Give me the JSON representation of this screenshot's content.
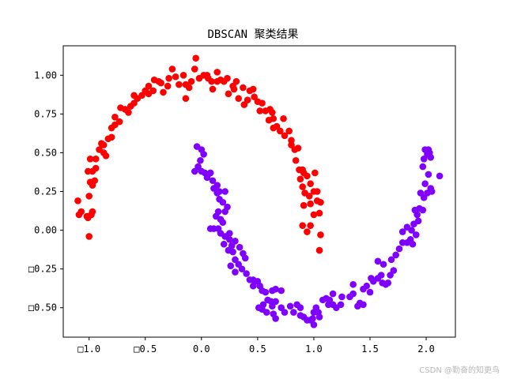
{
  "chart_data": {
    "type": "scatter",
    "title": "DBSCAN 聚类结果",
    "xlabel": "",
    "ylabel": "",
    "xlim": [
      -1.23,
      2.26
    ],
    "ylim": [
      -0.69,
      1.19
    ],
    "grid": false,
    "legend": "none",
    "x_ticks": [
      -1.0,
      -0.5,
      0.0,
      0.5,
      1.0,
      1.5,
      2.0
    ],
    "x_tick_labels": [
      "□1.0",
      "□0.5",
      "0.0",
      "0.5",
      "1.0",
      "1.5",
      "2.0"
    ],
    "y_ticks": [
      1.0,
      0.75,
      0.5,
      0.25,
      0.0,
      -0.25,
      -0.5
    ],
    "y_tick_labels": [
      "1.00",
      "0.75",
      "0.50",
      "0.25",
      "0.00",
      "□0.25",
      "□0.50"
    ],
    "series": [
      {
        "color": "#ff0000",
        "points": [
          [
            -1.1,
            0.19
          ],
          [
            -1.09,
            0.1
          ],
          [
            -1.07,
            0.12
          ],
          [
            -1.02,
            0.09
          ],
          [
            -1.01,
            0.08
          ],
          [
            -0.98,
            0.1
          ],
          [
            -0.97,
            0.12
          ],
          [
            -1.0,
            0.22
          ],
          [
            -0.99,
            0.31
          ],
          [
            -0.97,
            0.29
          ],
          [
            -1.01,
            0.38
          ],
          [
            -0.97,
            0.38
          ],
          [
            -0.99,
            0.46
          ],
          [
            -0.95,
            0.32
          ],
          [
            -0.94,
            0.4
          ],
          [
            -1.0,
            -0.04
          ],
          [
            -0.94,
            0.46
          ],
          [
            -0.91,
            0.52
          ],
          [
            -0.89,
            0.56
          ],
          [
            -0.87,
            0.55
          ],
          [
            -0.87,
            0.5
          ],
          [
            -0.85,
            0.48
          ],
          [
            -0.83,
            0.59
          ],
          [
            -0.8,
            0.6
          ],
          [
            -0.8,
            0.66
          ],
          [
            -0.77,
            0.68
          ],
          [
            -0.73,
            0.7
          ],
          [
            -0.77,
            0.73
          ],
          [
            -0.72,
            0.79
          ],
          [
            -0.68,
            0.78
          ],
          [
            -0.65,
            0.76
          ],
          [
            -0.63,
            0.8
          ],
          [
            -0.6,
            0.82
          ],
          [
            -0.6,
            0.87
          ],
          [
            -0.57,
            0.85
          ],
          [
            -0.53,
            0.87
          ],
          [
            -0.5,
            0.9
          ],
          [
            -0.47,
            0.93
          ],
          [
            -0.47,
            0.88
          ],
          [
            -0.43,
            0.9
          ],
          [
            -0.42,
            0.97
          ],
          [
            -0.38,
            0.96
          ],
          [
            -0.36,
            0.95
          ],
          [
            -0.34,
            0.89
          ],
          [
            -0.3,
            0.93
          ],
          [
            -0.29,
            0.98
          ],
          [
            -0.26,
            1.04
          ],
          [
            -0.23,
            0.99
          ],
          [
            -0.2,
            0.94
          ],
          [
            -0.16,
            1.0
          ],
          [
            -0.14,
            0.94
          ],
          [
            -0.11,
            0.92
          ],
          [
            -0.14,
            0.85
          ],
          [
            -0.09,
            0.96
          ],
          [
            -0.06,
            1.04
          ],
          [
            -0.05,
            1.11
          ],
          [
            -0.02,
            0.98
          ],
          [
            0.02,
            1.0
          ],
          [
            0.05,
            1.0
          ],
          [
            0.06,
            0.98
          ],
          [
            0.09,
            0.96
          ],
          [
            0.1,
            0.91
          ],
          [
            0.14,
            0.96
          ],
          [
            0.14,
            1.02
          ],
          [
            0.17,
            0.97
          ],
          [
            0.2,
            0.96
          ],
          [
            0.23,
            0.98
          ],
          [
            0.24,
            0.88
          ],
          [
            0.28,
            0.93
          ],
          [
            0.29,
            0.91
          ],
          [
            0.31,
            0.96
          ],
          [
            0.33,
            0.85
          ],
          [
            0.37,
            0.92
          ],
          [
            0.38,
            0.81
          ],
          [
            0.41,
            0.84
          ],
          [
            0.43,
            0.9
          ],
          [
            0.46,
            0.91
          ],
          [
            0.47,
            0.86
          ],
          [
            0.5,
            0.83
          ],
          [
            0.52,
            0.77
          ],
          [
            0.54,
            0.82
          ],
          [
            0.57,
            0.77
          ],
          [
            0.6,
            0.71
          ],
          [
            0.61,
            0.78
          ],
          [
            0.63,
            0.76
          ],
          [
            0.64,
            0.72
          ],
          [
            0.64,
            0.66
          ],
          [
            0.67,
            0.67
          ],
          [
            0.7,
            0.64
          ],
          [
            0.73,
            0.72
          ],
          [
            0.74,
            0.61
          ],
          [
            0.78,
            0.64
          ],
          [
            0.8,
            0.58
          ],
          [
            0.8,
            0.55
          ],
          [
            0.83,
            0.52
          ],
          [
            0.84,
            0.45
          ],
          [
            0.86,
            0.53
          ],
          [
            0.87,
            0.39
          ],
          [
            0.88,
            0.33
          ],
          [
            0.9,
            0.39
          ],
          [
            0.9,
            0.28
          ],
          [
            0.91,
            0.37
          ],
          [
            0.92,
            0.24
          ],
          [
            0.91,
            0.16
          ],
          [
            0.94,
            0.35
          ],
          [
            0.96,
            0.22
          ],
          [
            0.97,
            0.17
          ],
          [
            0.97,
            0.3
          ],
          [
            1.0,
            0.25
          ],
          [
            1.01,
            0.37
          ],
          [
            1.03,
            0.25
          ],
          [
            1.03,
            0.19
          ],
          [
            0.9,
            0.03
          ],
          [
            0.94,
            -0.01
          ],
          [
            0.97,
            0.03
          ],
          [
            1.0,
            0.1
          ],
          [
            1.06,
            0.18
          ],
          [
            1.05,
            0.11
          ],
          [
            1.06,
            -0.03
          ],
          [
            1.05,
            -0.13
          ]
        ]
      },
      {
        "color": "#8000ff",
        "points": [
          [
            -0.04,
            0.54
          ],
          [
            0.0,
            0.52
          ],
          [
            0.02,
            0.49
          ],
          [
            -0.01,
            0.45
          ],
          [
            -0.03,
            0.41
          ],
          [
            -0.06,
            0.38
          ],
          [
            0.0,
            0.38
          ],
          [
            0.03,
            0.37
          ],
          [
            0.06,
            0.36
          ],
          [
            0.08,
            0.37
          ],
          [
            0.05,
            0.34
          ],
          [
            0.1,
            0.32
          ],
          [
            0.14,
            0.29
          ],
          [
            0.11,
            0.27
          ],
          [
            0.16,
            0.25
          ],
          [
            0.14,
            0.24
          ],
          [
            0.21,
            0.25
          ],
          [
            0.16,
            0.2
          ],
          [
            0.19,
            0.18
          ],
          [
            0.23,
            0.15
          ],
          [
            0.21,
            0.12
          ],
          [
            0.15,
            0.12
          ],
          [
            0.13,
            0.09
          ],
          [
            0.17,
            0.07
          ],
          [
            0.19,
            0.05
          ],
          [
            0.08,
            0.01
          ],
          [
            0.11,
            0.01
          ],
          [
            0.15,
            0.01
          ],
          [
            0.17,
            -0.02
          ],
          [
            0.21,
            -0.04
          ],
          [
            0.25,
            -0.02
          ],
          [
            0.25,
            -0.06
          ],
          [
            0.2,
            -0.09
          ],
          [
            0.27,
            -0.1
          ],
          [
            0.3,
            -0.07
          ],
          [
            0.34,
            -0.11
          ],
          [
            0.37,
            -0.15
          ],
          [
            0.39,
            -0.18
          ],
          [
            0.24,
            -0.13
          ],
          [
            0.28,
            -0.14
          ],
          [
            0.3,
            -0.19
          ],
          [
            0.33,
            -0.22
          ],
          [
            0.26,
            -0.23
          ],
          [
            0.3,
            -0.27
          ],
          [
            0.36,
            -0.25
          ],
          [
            0.4,
            -0.28
          ],
          [
            0.43,
            -0.32
          ],
          [
            0.46,
            -0.32
          ],
          [
            0.5,
            -0.33
          ],
          [
            0.52,
            -0.36
          ],
          [
            0.46,
            -0.36
          ],
          [
            0.54,
            -0.39
          ],
          [
            0.57,
            -0.4
          ],
          [
            0.63,
            -0.39
          ],
          [
            0.66,
            -0.38
          ],
          [
            0.71,
            -0.39
          ],
          [
            0.59,
            -0.45
          ],
          [
            0.62,
            -0.46
          ],
          [
            0.66,
            -0.46
          ],
          [
            0.55,
            -0.48
          ],
          [
            0.51,
            -0.5
          ],
          [
            0.54,
            -0.51
          ],
          [
            0.63,
            -0.49
          ],
          [
            0.71,
            -0.5
          ],
          [
            0.58,
            -0.53
          ],
          [
            0.64,
            -0.54
          ],
          [
            0.66,
            -0.57
          ],
          [
            0.74,
            -0.53
          ],
          [
            0.79,
            -0.49
          ],
          [
            0.82,
            -0.53
          ],
          [
            0.85,
            -0.48
          ],
          [
            0.88,
            -0.5
          ],
          [
            0.88,
            -0.55
          ],
          [
            0.91,
            -0.56
          ],
          [
            0.94,
            -0.58
          ],
          [
            0.97,
            -0.58
          ],
          [
            1.0,
            -0.53
          ],
          [
            1.02,
            -0.5
          ],
          [
            1.04,
            -0.53
          ],
          [
            0.99,
            -0.57
          ],
          [
            1.0,
            -0.61
          ],
          [
            1.05,
            -0.56
          ],
          [
            1.08,
            -0.45
          ],
          [
            1.11,
            -0.44
          ],
          [
            1.14,
            -0.45
          ],
          [
            1.17,
            -0.41
          ],
          [
            1.13,
            -0.48
          ],
          [
            1.17,
            -0.48
          ],
          [
            1.2,
            -0.5
          ],
          [
            1.24,
            -0.48
          ],
          [
            1.25,
            -0.43
          ],
          [
            1.32,
            -0.43
          ],
          [
            1.35,
            -0.35
          ],
          [
            1.35,
            -0.41
          ],
          [
            1.39,
            -0.49
          ],
          [
            1.41,
            -0.47
          ],
          [
            1.44,
            -0.48
          ],
          [
            1.44,
            -0.38
          ],
          [
            1.47,
            -0.36
          ],
          [
            1.5,
            -0.4
          ],
          [
            1.51,
            -0.31
          ],
          [
            1.53,
            -0.33
          ],
          [
            1.57,
            -0.31
          ],
          [
            1.6,
            -0.29
          ],
          [
            1.61,
            -0.34
          ],
          [
            1.64,
            -0.35
          ],
          [
            1.66,
            -0.34
          ],
          [
            1.68,
            -0.29
          ],
          [
            1.71,
            -0.26
          ],
          [
            1.57,
            -0.2
          ],
          [
            1.62,
            -0.22
          ],
          [
            1.69,
            -0.19
          ],
          [
            1.73,
            -0.16
          ],
          [
            1.76,
            -0.12
          ],
          [
            1.79,
            -0.08
          ],
          [
            1.83,
            -0.08
          ],
          [
            1.86,
            -0.06
          ],
          [
            1.88,
            -0.09
          ],
          [
            1.79,
            -0.01
          ],
          [
            1.83,
            0.02
          ],
          [
            1.87,
            0.0
          ],
          [
            1.89,
            0.04
          ],
          [
            1.91,
            -0.03
          ],
          [
            1.93,
            0.06
          ],
          [
            1.92,
            0.1
          ],
          [
            1.9,
            0.13
          ],
          [
            1.94,
            0.14
          ],
          [
            1.97,
            0.13
          ],
          [
            1.98,
            0.21
          ],
          [
            2.01,
            0.24
          ],
          [
            1.95,
            0.24
          ],
          [
            2.05,
            0.25
          ],
          [
            2.04,
            0.27
          ],
          [
            1.99,
            0.3
          ],
          [
            2.02,
            0.36
          ],
          [
            1.97,
            0.41
          ],
          [
            1.98,
            0.46
          ],
          [
            2.01,
            0.49
          ],
          [
            2.03,
            0.5
          ],
          [
            1.99,
            0.52
          ],
          [
            2.02,
            0.52
          ],
          [
            2.04,
            0.47
          ],
          [
            2.12,
            0.35
          ]
        ]
      }
    ]
  },
  "watermark": "CSDN @勤奋的知更鸟"
}
